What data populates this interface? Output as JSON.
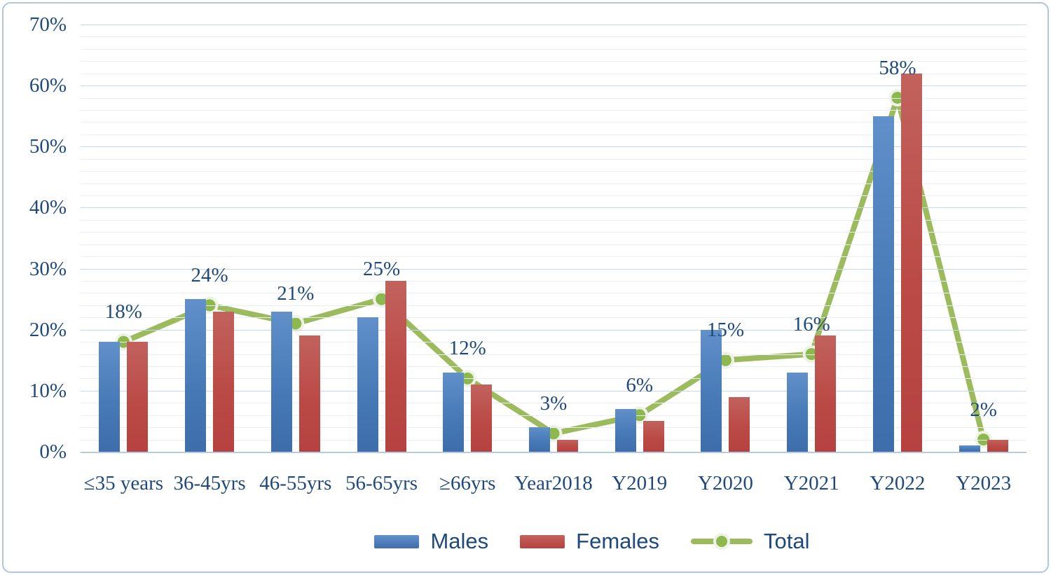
{
  "window": {
    "background": "#ffffff",
    "border_color": "#aec6e0"
  },
  "chart_data": {
    "type": "combo",
    "title": "",
    "xlabel": "",
    "ylabel": "",
    "categories": [
      "≤35 years",
      "36-45yrs",
      "46-55yrs",
      "56-65yrs",
      "≥66yrs",
      "Year2018",
      "Y2019",
      "Y2020",
      "Y2021",
      "Y2022",
      "Y2023"
    ],
    "series": [
      {
        "name": "Males",
        "type": "bar",
        "color": "#4F81BD",
        "values": [
          18,
          25,
          23,
          22,
          13,
          4,
          7,
          20,
          13,
          55,
          1
        ]
      },
      {
        "name": "Females",
        "type": "bar",
        "color": "#C0504D",
        "values": [
          18,
          23,
          19,
          28,
          11,
          2,
          5,
          9,
          19,
          62,
          2
        ]
      },
      {
        "name": "Total",
        "type": "line",
        "color": "#9BBB59",
        "marker": "circle",
        "values": [
          18,
          24,
          21,
          25,
          12,
          3,
          6,
          15,
          16,
          58,
          2
        ],
        "data_labels": [
          "18%",
          "24%",
          "21%",
          "25%",
          "12%",
          "3%",
          "6%",
          "15%",
          "16%",
          "58%",
          "2%"
        ]
      }
    ],
    "ylim": [
      0,
      70
    ],
    "y_ticks": [
      "0%",
      "10%",
      "20%",
      "30%",
      "40%",
      "50%",
      "60%",
      "70%"
    ],
    "y_major_step": 10,
    "y_minor_step": 2,
    "grid": true,
    "legend_position": "bottom",
    "label_color": "#1F497D"
  }
}
